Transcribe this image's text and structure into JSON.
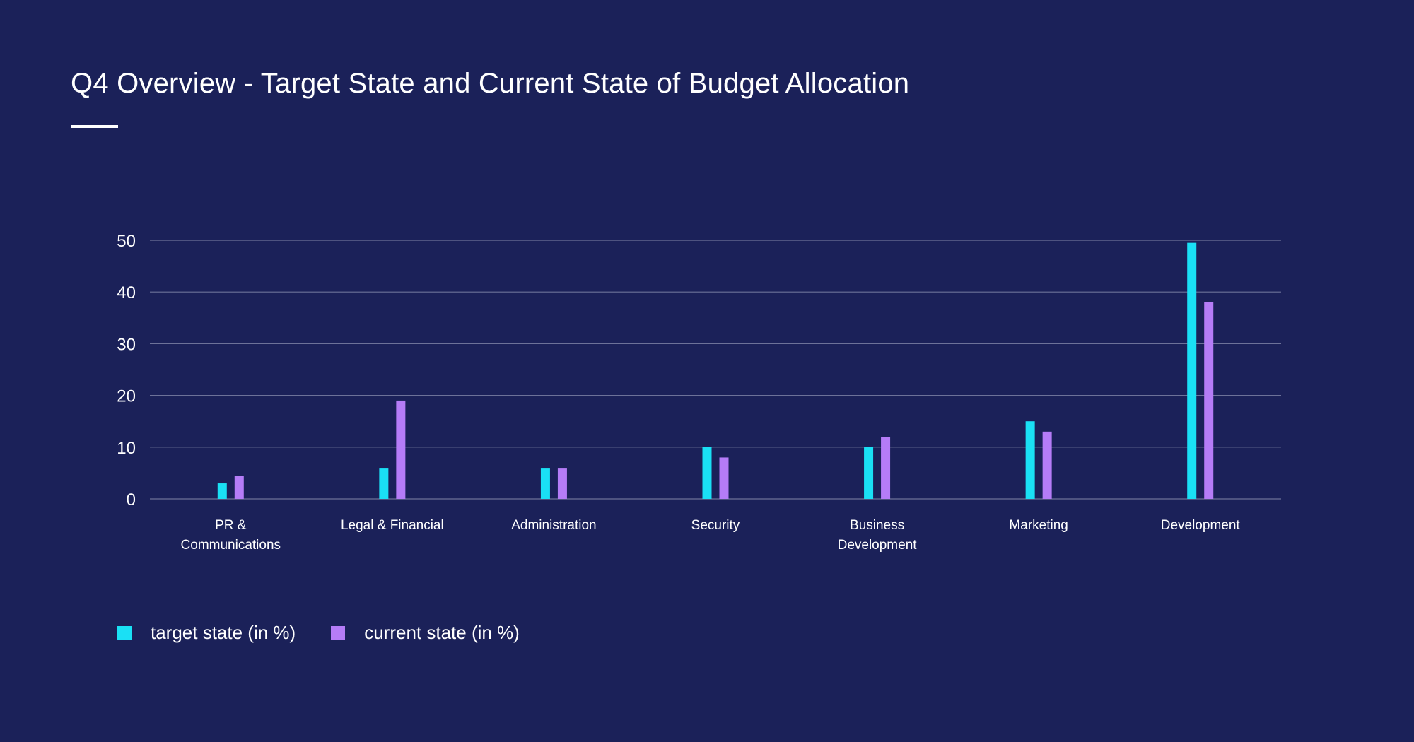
{
  "title": "Q4 Overview - Target State and Current State of Budget Allocation",
  "colors": {
    "background": "#1b2159",
    "target": "#1ae0f5",
    "current": "#b57cf7",
    "grid": "#6d7299",
    "text": "#ffffff"
  },
  "legend": {
    "items": [
      {
        "label": "target state (in %)",
        "color": "#1ae0f5"
      },
      {
        "label": "current state (in %)",
        "color": "#b57cf7"
      }
    ]
  },
  "chart_data": {
    "type": "bar",
    "title": "Q4 Overview - Target State and Current State of Budget Allocation",
    "xlabel": "",
    "ylabel": "",
    "ylim": [
      0,
      50
    ],
    "yticks": [
      "0",
      "10",
      "20",
      "30",
      "40",
      "50"
    ],
    "grid": true,
    "legend_position": "bottom-left",
    "categories": [
      [
        "PR &",
        "Communications"
      ],
      [
        "Legal & Financial"
      ],
      [
        "Administration"
      ],
      [
        "Security"
      ],
      [
        "Business",
        "Development"
      ],
      [
        "Marketing"
      ],
      [
        "Development"
      ]
    ],
    "series": [
      {
        "name": "target state (in %)",
        "values": [
          3,
          6,
          6,
          10,
          10,
          15,
          49.5
        ]
      },
      {
        "name": "current state (in %)",
        "values": [
          4.5,
          19,
          6,
          8,
          12,
          13,
          38
        ]
      }
    ]
  }
}
